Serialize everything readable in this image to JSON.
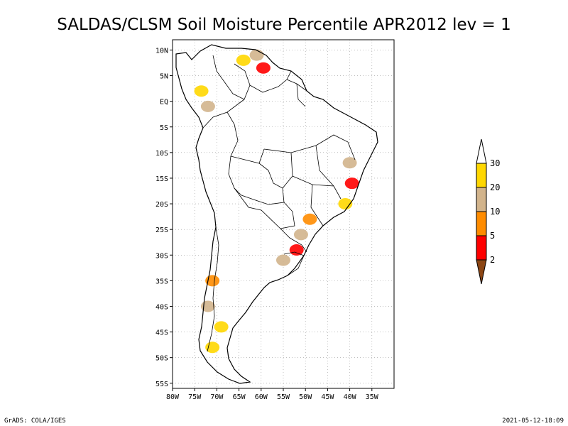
{
  "title": "SALDAS/CLSM Soil Moisture Percentile APR2012 lev = 1",
  "footer_left": "GrADS: COLA/IGES",
  "footer_right": "2021-05-12-18:09",
  "chart_data": {
    "type": "heatmap",
    "title": "SALDAS/CLSM Soil Moisture Percentile APR2012 lev = 1",
    "x_axis": {
      "range": [
        -80,
        -30
      ],
      "ticks": [
        -80,
        -75,
        -70,
        -65,
        -60,
        -55,
        -50,
        -45,
        -40,
        -35
      ],
      "tick_labels": [
        "80W",
        "75W",
        "70W",
        "65W",
        "60W",
        "55W",
        "50W",
        "45W",
        "40W",
        "35W"
      ]
    },
    "y_axis": {
      "range": [
        -56,
        12
      ],
      "ticks": [
        10,
        5,
        0,
        -5,
        -10,
        -15,
        -20,
        -25,
        -30,
        -35,
        -40,
        -45,
        -50,
        -55
      ],
      "tick_labels": [
        "10N",
        "5N",
        "EQ",
        "5S",
        "10S",
        "15S",
        "20S",
        "25S",
        "30S",
        "35S",
        "40S",
        "45S",
        "50S",
        "55S"
      ]
    },
    "grid": true,
    "legend": "right",
    "colorbar": {
      "levels": [
        "2",
        "5",
        "10",
        "20",
        "30"
      ],
      "colors": [
        "#8B4513",
        "#FF0000",
        "#FF8C00",
        "#D2B48C",
        "#FFD700",
        "#FFFFFF"
      ]
    },
    "regions": [
      {
        "lon": -61,
        "lat": 9,
        "category": 20
      },
      {
        "lon": -64,
        "lat": 8,
        "category": 30
      },
      {
        "lon": -59.5,
        "lat": 6.5,
        "category": 5
      },
      {
        "lon": -73.5,
        "lat": 2,
        "category": 30
      },
      {
        "lon": -72,
        "lat": -1,
        "category": 20
      },
      {
        "lon": -40,
        "lat": -12,
        "category": 20
      },
      {
        "lon": -39.5,
        "lat": -16,
        "category": 5
      },
      {
        "lon": -41,
        "lat": -20,
        "category": 30
      },
      {
        "lon": -49,
        "lat": -23,
        "category": 10
      },
      {
        "lon": -51,
        "lat": -26,
        "category": 20
      },
      {
        "lon": -52,
        "lat": -29,
        "category": 5
      },
      {
        "lon": -55,
        "lat": -31,
        "category": 20
      },
      {
        "lon": -71,
        "lat": -35,
        "category": 10
      },
      {
        "lon": -72,
        "lat": -40,
        "category": 20
      },
      {
        "lon": -69,
        "lat": -44,
        "category": 30
      },
      {
        "lon": -71,
        "lat": -48,
        "category": 30
      }
    ]
  }
}
